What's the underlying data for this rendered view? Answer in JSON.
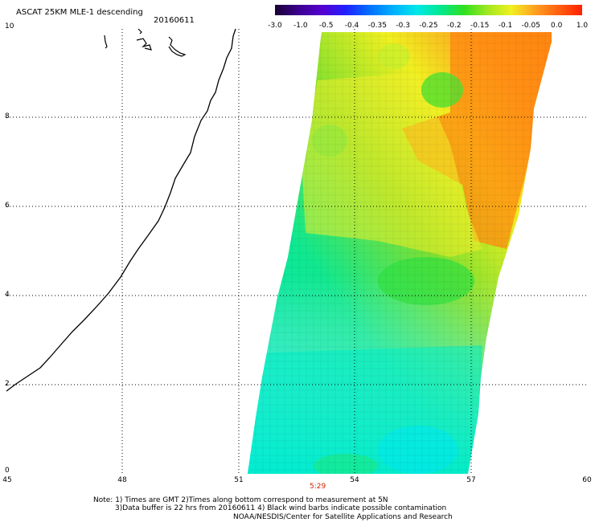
{
  "header": {
    "title": "ASCAT 25KM MLE-1 descending",
    "date": "20160611"
  },
  "colorbar": {
    "labels": [
      "-3.0",
      "-1.0",
      "-0.5",
      "-0.4",
      "-0.35",
      "-0.3",
      "-0.25",
      "-0.2",
      "-0.15",
      "-0.1",
      "-0.05",
      "0.0",
      "1.0"
    ],
    "colors": [
      "#1a0033",
      "#3b0090",
      "#5500d0",
      "#2020ff",
      "#0070ff",
      "#00b0ff",
      "#00e8e8",
      "#00e890",
      "#30e020",
      "#a0e820",
      "#f0f020",
      "#ffa020",
      "#ff6010",
      "#ff2000"
    ]
  },
  "axes": {
    "x_ticks": [
      "45",
      "48",
      "51",
      "54",
      "57",
      "60"
    ],
    "y_ticks": [
      "10",
      "8",
      "6",
      "4",
      "2",
      "0"
    ]
  },
  "time_label": "5:29",
  "notes": {
    "line1": "Note: 1) Times are GMT 2)Times along bottom correspond to measurement at 5N",
    "line2": "3)Data buffer is 22 hrs from 20160611 4) Black wind barbs indicate possible contamination",
    "line3": "NOAA/NESDIS/Center for Satellite Applications and Research"
  }
}
